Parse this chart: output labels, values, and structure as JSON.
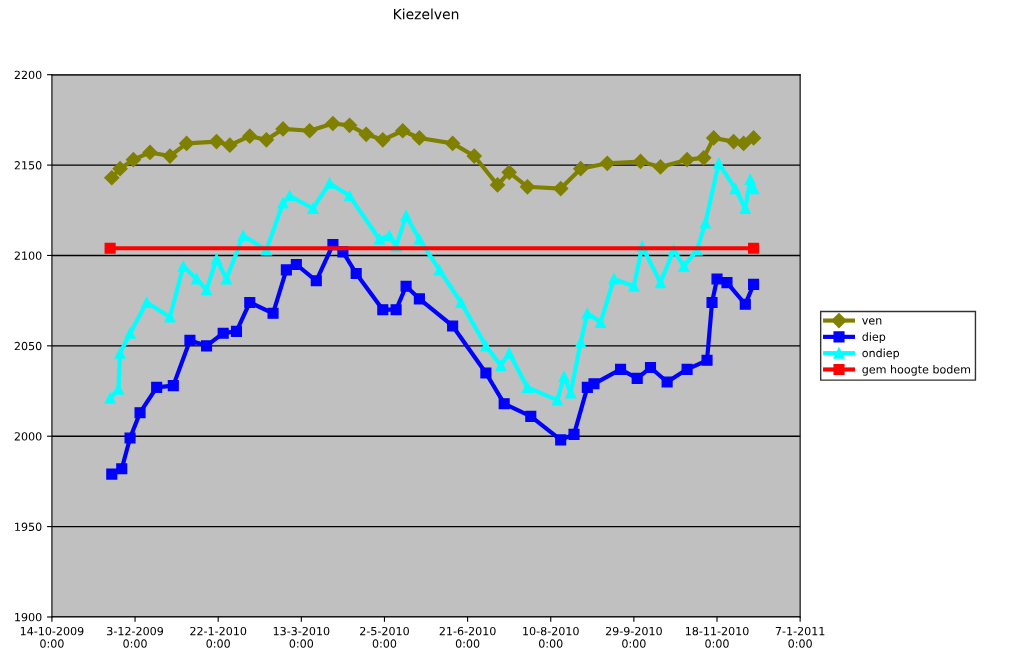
{
  "chart_data": {
    "type": "line",
    "title": "Kiezelven",
    "xlim": [
      "2009-10-14",
      "2011-01-07"
    ],
    "xticks": [
      {
        "value": "2009-10-14",
        "label": "14-10-2009\n0:00"
      },
      {
        "value": "2009-12-03",
        "label": "3-12-2009\n0:00"
      },
      {
        "value": "2010-01-22",
        "label": "22-1-2010\n0:00"
      },
      {
        "value": "2010-03-13",
        "label": "13-3-2010\n0:00"
      },
      {
        "value": "2010-05-02",
        "label": "2-5-2010\n0:00"
      },
      {
        "value": "2010-06-21",
        "label": "21-6-2010\n0:00"
      },
      {
        "value": "2010-08-10",
        "label": "10-8-2010\n0:00"
      },
      {
        "value": "2010-09-29",
        "label": "29-9-2010\n0:00"
      },
      {
        "value": "2010-11-18",
        "label": "18-11-2010\n0:00"
      },
      {
        "value": "2011-01-07",
        "label": "7-1-2011\n0:00"
      }
    ],
    "ylim": [
      1900,
      2200
    ],
    "yticks": [
      1900,
      1950,
      2000,
      2050,
      2100,
      2150,
      2200
    ],
    "grid": "y",
    "legend": "right",
    "series": [
      {
        "name": "ven",
        "color": "#808000",
        "marker": "diamond",
        "x": [
          "2009-11-19",
          "2009-11-24",
          "2009-12-02",
          "2009-12-12",
          "2009-12-24",
          "2010-01-03",
          "2010-01-21",
          "2010-01-29",
          "2010-02-10",
          "2010-02-20",
          "2010-03-02",
          "2010-03-18",
          "2010-04-01",
          "2010-04-11",
          "2010-04-21",
          "2010-05-01",
          "2010-05-13",
          "2010-05-23",
          "2010-06-12",
          "2010-06-25",
          "2010-07-09",
          "2010-07-16",
          "2010-07-27",
          "2010-08-16",
          "2010-08-28",
          "2010-09-13",
          "2010-10-03",
          "2010-10-15",
          "2010-10-31",
          "2010-11-10",
          "2010-11-16",
          "2010-11-28",
          "2010-12-04",
          "2010-12-10"
        ],
        "values": [
          2143,
          2148,
          2153,
          2157,
          2155,
          2162,
          2163,
          2161,
          2166,
          2164,
          2170,
          2169,
          2173,
          2172,
          2167,
          2164,
          2169,
          2165,
          2162,
          2155,
          2139,
          2146,
          2138,
          2137,
          2148,
          2151,
          2152,
          2149,
          2153,
          2154,
          2165,
          2163,
          2162,
          2165
        ]
      },
      {
        "name": "diep",
        "color": "#0000ff",
        "marker": "square",
        "x": [
          "2009-11-19",
          "2009-11-25",
          "2009-11-30",
          "2009-12-06",
          "2009-12-16",
          "2009-12-26",
          "2010-01-05",
          "2010-01-15",
          "2010-01-25",
          "2010-02-02",
          "2010-02-10",
          "2010-02-24",
          "2010-03-04",
          "2010-03-10",
          "2010-03-22",
          "2010-04-01",
          "2010-04-07",
          "2010-04-15",
          "2010-05-01",
          "2010-05-09",
          "2010-05-15",
          "2010-05-23",
          "2010-06-12",
          "2010-07-02",
          "2010-07-13",
          "2010-07-29",
          "2010-08-16",
          "2010-08-24",
          "2010-09-01",
          "2010-09-05",
          "2010-09-21",
          "2010-10-01",
          "2010-10-09",
          "2010-10-19",
          "2010-10-31",
          "2010-11-12",
          "2010-11-15",
          "2010-11-18",
          "2010-11-24",
          "2010-12-05",
          "2010-12-10"
        ],
        "values": [
          1979,
          1982,
          1999,
          2013,
          2027,
          2028,
          2053,
          2050,
          2057,
          2058,
          2074,
          2068,
          2092,
          2095,
          2086,
          2106,
          2102,
          2090,
          2070,
          2070,
          2083,
          2076,
          2061,
          2035,
          2018,
          2011,
          1998,
          2001,
          2027,
          2029,
          2037,
          2032,
          2038,
          2030,
          2037,
          2042,
          2074,
          2087,
          2085,
          2073,
          2084
        ]
      },
      {
        "name": "ondiep",
        "color": "#00ffff",
        "marker": "triangle",
        "x": [
          "2009-11-18",
          "2009-11-23",
          "2009-11-24",
          "2009-11-30",
          "2009-12-10",
          "2009-12-24",
          "2010-01-01",
          "2010-01-09",
          "2010-01-15",
          "2010-01-21",
          "2010-01-27",
          "2010-02-06",
          "2010-02-20",
          "2010-03-02",
          "2010-03-06",
          "2010-03-20",
          "2010-03-30",
          "2010-04-11",
          "2010-04-29",
          "2010-05-05",
          "2010-05-09",
          "2010-05-15",
          "2010-05-23",
          "2010-06-04",
          "2010-06-17",
          "2010-07-02",
          "2010-07-11",
          "2010-07-16",
          "2010-07-27",
          "2010-08-14",
          "2010-08-18",
          "2010-08-22",
          "2010-08-28",
          "2010-09-01",
          "2010-09-09",
          "2010-09-17",
          "2010-09-29",
          "2010-10-04",
          "2010-10-15",
          "2010-10-23",
          "2010-10-29",
          "2010-11-06",
          "2010-11-11",
          "2010-11-19",
          "2010-11-29",
          "2010-12-05",
          "2010-12-08",
          "2010-12-10"
        ],
        "values": [
          2021,
          2026,
          2046,
          2057,
          2074,
          2066,
          2094,
          2087,
          2081,
          2098,
          2087,
          2111,
          2103,
          2129,
          2133,
          2126,
          2140,
          2133,
          2109,
          2111,
          2105,
          2122,
          2109,
          2092,
          2074,
          2050,
          2039,
          2046,
          2027,
          2020,
          2033,
          2024,
          2052,
          2068,
          2063,
          2087,
          2083,
          2105,
          2085,
          2103,
          2094,
          2103,
          2118,
          2151,
          2137,
          2126,
          2142,
          2137
        ]
      },
      {
        "name": "gem hoogte bodem",
        "color": "#ff0000",
        "marker": "square",
        "x": [
          "2009-11-18",
          "2010-12-10"
        ],
        "values": [
          2104,
          2104
        ]
      }
    ]
  }
}
